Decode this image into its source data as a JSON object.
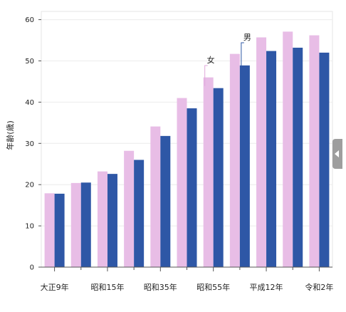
{
  "chart_data": {
    "type": "bar",
    "categories": [
      "大正9年",
      "",
      "昭和15年",
      "",
      "昭和35年",
      "",
      "昭和55年",
      "",
      "平成12年",
      "",
      "令和2年"
    ],
    "series": [
      {
        "name": "女",
        "color": "#e8bde6",
        "values": [
          17.9,
          20.4,
          23.2,
          28.2,
          34.1,
          41.0,
          46.0,
          51.7,
          55.7,
          57.1,
          56.2
        ]
      },
      {
        "name": "男",
        "color": "#2e57a6",
        "values": [
          17.8,
          20.5,
          22.6,
          26.0,
          31.8,
          38.5,
          43.4,
          48.9,
          52.4,
          53.2,
          52.0
        ]
      }
    ],
    "ylabel": "年齢(歳)",
    "ylim": [
      0,
      62
    ],
    "yticks": [
      0,
      10,
      20,
      30,
      40,
      50,
      60
    ],
    "gridlines": true,
    "annotations": [
      {
        "text": "女",
        "series": 0,
        "category_index": 6
      },
      {
        "text": "男",
        "series": 1,
        "category_index": 7
      }
    ]
  },
  "side_handle": {
    "icon": "chevron-left-icon",
    "color": "#9e9e9e"
  }
}
